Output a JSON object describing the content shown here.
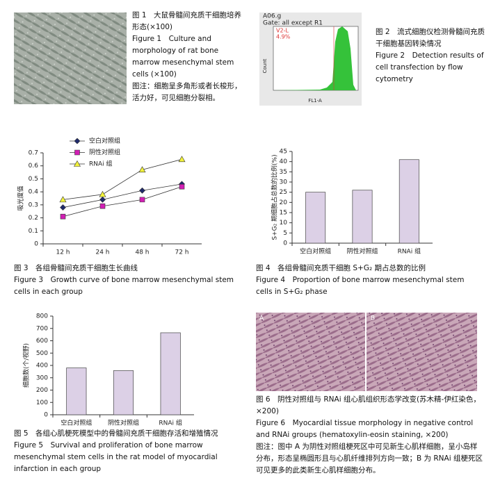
{
  "chart_data": [
    {
      "type": "line",
      "ylabel": "吸光度值",
      "categories": [
        "12 h",
        "24 h",
        "48 h",
        "72 h"
      ],
      "series": [
        {
          "name": "空白对照组",
          "color": "#1f2a6b",
          "marker": "diamond",
          "values": [
            0.28,
            0.34,
            0.41,
            0.46
          ]
        },
        {
          "name": "阴性对照组",
          "color": "#d21fb4",
          "marker": "square",
          "values": [
            0.21,
            0.29,
            0.34,
            0.44
          ]
        },
        {
          "name": "RNAi 组",
          "color": "#f2f23a",
          "marker": "triangle",
          "values": [
            0.34,
            0.38,
            0.57,
            0.65
          ]
        }
      ],
      "ylim": [
        0,
        0.7
      ],
      "yticks": [
        0,
        0.1,
        0.2,
        0.3,
        0.4,
        0.5,
        0.6,
        0.7
      ]
    },
    {
      "type": "bar",
      "ylabel": "S+G₂ 期细胞占总数的比例(%)",
      "categories": [
        "空白对照组",
        "阴性对照组",
        "RNAi 组"
      ],
      "values": [
        25,
        26,
        41
      ],
      "color": "#dcd0e6",
      "ylim": [
        0,
        45
      ],
      "yticks": [
        0,
        5,
        10,
        15,
        20,
        25,
        30,
        35,
        40,
        45
      ]
    },
    {
      "type": "bar",
      "ylabel": "细胞数(个/视野)",
      "categories": [
        "空白对照组",
        "阴性对照组",
        "RNAi 组"
      ],
      "values": [
        380,
        358,
        665
      ],
      "color": "#dcd0e6",
      "ylim": [
        0,
        800
      ],
      "yticks": [
        0,
        100,
        200,
        300,
        400,
        500,
        600,
        700,
        800
      ]
    }
  ],
  "flow": {
    "title": "A06.g",
    "gate": "Gate: all except R1",
    "region": "V2-L",
    "percent": "4.9%",
    "ylabel": "Count",
    "xlabel": "FL1-A"
  },
  "fig6_panels": [
    "A",
    "B"
  ],
  "captions": [
    {
      "cn": "图 1　大鼠骨髓间充质干细胞培养形态(×100)",
      "en": "Figure 1　Culture and morphology of rat bone marrow mesenchymal stem cells (×100)",
      "note": "图注：细胞呈多角形或者长梭形，活力好，可见细胞分裂相。"
    },
    {
      "cn": "图 2　流式细胞仪检测骨髓间充质干细胞基因转染情况",
      "en": "Figure 2　Detection results of cell transfection by flow cytometry"
    },
    {
      "cn": "图 3　各组骨髓间充质干细胞生长曲线",
      "en": "Figure 3　Growth curve of bone marrow mesenchymal stem cells in each group"
    },
    {
      "cn": "图 4　各组骨髓间充质干细胞 S+G₂ 期占总数的比例",
      "en": "Figure 4　Proportion of bone marrow mesenchymal stem cells in S+G₂ phase"
    },
    {
      "cn": "图 5　各组心肌梗死模型中的骨髓间充质干细胞存活和增殖情况",
      "en": "Figure 5　Survival and proliferation of bone marrow mesenchymal stem cells in the rat model of myocardial infarction in each group"
    },
    {
      "cn": "图 6　阴性对照组与 RNAi 组心肌组织形态学改变(苏木精-伊红染色，×200)",
      "en": "Figure 6　Myocardial tissue morphology in negative control and RNAi groups (hematoxylin-eosin staining, ×200)",
      "note": "图注：图中 A 为阴性对照组梗死区中可见新生心肌样细胞，呈小岛样分布，形态呈椭圆形且与心肌纤维排列方向一致；B 为 RNAi 组梗死区可见更多的此类新生心肌样细胞分布。"
    }
  ]
}
